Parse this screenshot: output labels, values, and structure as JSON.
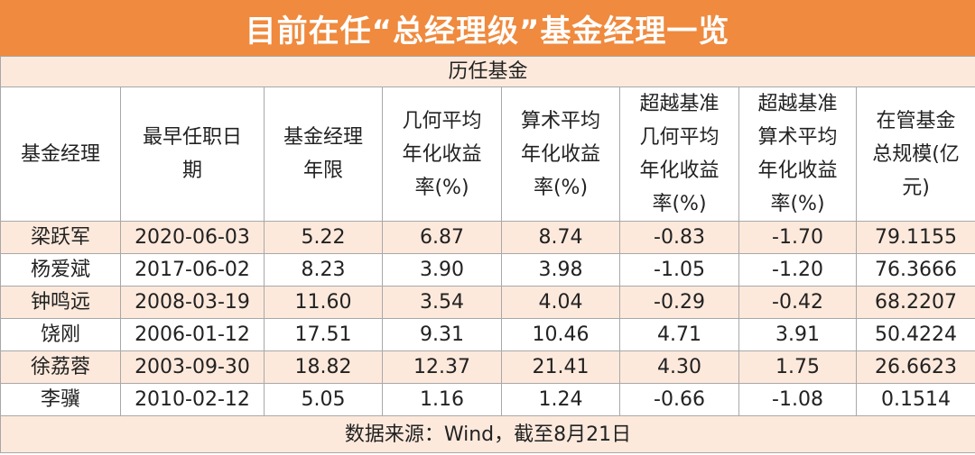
{
  "title": "目前在任“总经理级”基金经理一览",
  "table": {
    "group_header": "历任基金",
    "headers": [
      [
        "基金经理"
      ],
      [
        "最早任职日",
        "期"
      ],
      [
        "基金经理",
        "年限"
      ],
      [
        "几何平均",
        "年化收益",
        "率(%)"
      ],
      [
        "算术平均",
        "年化收益",
        "率(%)"
      ],
      [
        "超越基准",
        "几何平均",
        "年化收益",
        "率(%)"
      ],
      [
        "超越基准",
        "算术平均",
        "年化收益",
        "率(%)"
      ],
      [
        "在管基金",
        "总规模(亿",
        "元)"
      ]
    ],
    "rows": [
      [
        "梁跃军",
        "2020-06-03",
        "5.22",
        "6.87",
        "8.74",
        "-0.83",
        "-1.70",
        "79.1155"
      ],
      [
        "杨爱斌",
        "2017-06-02",
        "8.23",
        "3.90",
        "3.98",
        "-1.05",
        "-1.20",
        "76.3666"
      ],
      [
        "钟鸣远",
        "2008-03-19",
        "11.60",
        "3.54",
        "4.04",
        "-0.29",
        "-0.42",
        "68.2207"
      ],
      [
        "饶刚",
        "2006-01-12",
        "17.51",
        "9.31",
        "10.46",
        "4.71",
        "3.91",
        "50.4224"
      ],
      [
        "徐荔蓉",
        "2003-09-30",
        "18.82",
        "12.37",
        "21.41",
        "4.30",
        "1.75",
        "26.6623"
      ],
      [
        "李骥",
        "2010-02-12",
        "5.05",
        "1.16",
        "1.24",
        "-0.66",
        "-1.08",
        "0.1514"
      ]
    ]
  },
  "footer": "数据来源：Wind，截至8月21日"
}
